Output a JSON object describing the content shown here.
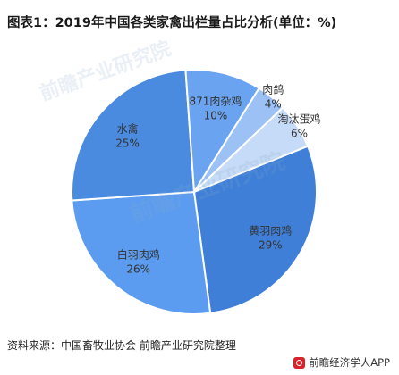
{
  "header": {
    "title": "图表1：2019年中国各类家禽出栏量占比分析(单位：%)"
  },
  "footer": {
    "source": "资料来源：中国畜牧业协会 前瞻产业研究院整理",
    "brand": "前瞻经济学人APP"
  },
  "watermark": {
    "text": "前瞻产业研究院"
  },
  "colors": {
    "slices": [
      "#3f7fd8",
      "#5b9cf0",
      "#8ab6f2",
      "#b5d0f5",
      "#d9e7fa",
      "#4a8be0"
    ],
    "edge": "#ffffff"
  },
  "chart_data": {
    "type": "pie",
    "title": "图表1：2019年中国各类家禽出栏量占比分析(单位：%)",
    "unit": "%",
    "categories": [
      "黄羽肉鸡",
      "白羽肉鸡",
      "水禽",
      "871肉杂鸡",
      "肉鸽",
      "淘汰蛋鸡"
    ],
    "values": [
      29,
      26,
      25,
      10,
      4,
      6
    ],
    "value_labels": [
      "29%",
      "26%",
      "25%",
      "10%",
      "4%",
      "6%"
    ],
    "colors": [
      "#3f7fd8",
      "#5b9cf0",
      "#4a8be0",
      "#6aa3ef",
      "#9cc1f4",
      "#c6dbf7"
    ],
    "legend": "none"
  }
}
